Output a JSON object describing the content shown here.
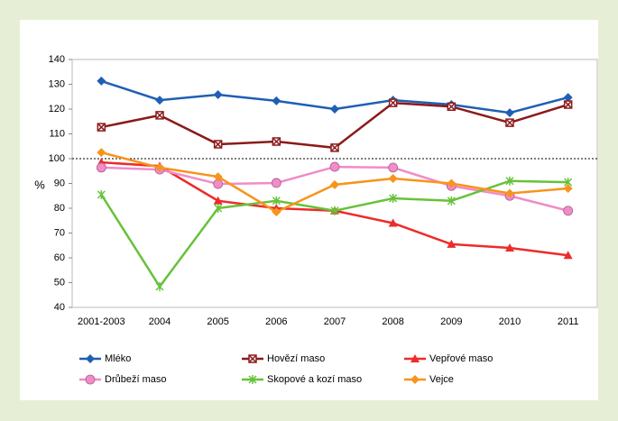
{
  "chart_data": {
    "type": "line",
    "categories": [
      "2001-2003",
      "2004",
      "2005",
      "2006",
      "2007",
      "2008",
      "2009",
      "2010",
      "2011"
    ],
    "y_label": "%",
    "ylim": [
      40,
      140
    ],
    "yticks": [
      40,
      50,
      60,
      70,
      80,
      90,
      100,
      110,
      120,
      130,
      140
    ],
    "reference_line": 100,
    "series": [
      {
        "name": "Mléko",
        "color": "#1f5fb4",
        "marker": "diamond",
        "values": [
          131.3,
          123.6,
          125.8,
          123.3,
          120,
          123.6,
          121.8,
          118.5,
          124.7
        ]
      },
      {
        "name": "Hovězí maso",
        "color": "#8b1a1a",
        "marker": "square",
        "values": [
          112.7,
          117.5,
          105.8,
          106.9,
          104.4,
          122.5,
          121,
          114.5,
          121.8
        ]
      },
      {
        "name": "Vepřové maso",
        "color": "#ee2b2b",
        "marker": "triangle",
        "values": [
          98.5,
          97,
          83,
          80,
          79,
          74,
          65.5,
          64,
          61
        ]
      },
      {
        "name": "Drůbeží maso",
        "color": "#f08cc8",
        "marker": "circle",
        "values": [
          96.4,
          95.6,
          89.8,
          90.2,
          96.7,
          96.4,
          89,
          85,
          79
        ]
      },
      {
        "name": "Skopové a kozí maso",
        "color": "#66c23a",
        "marker": "star",
        "values": [
          85.5,
          48.4,
          80,
          83,
          79,
          84,
          83,
          91,
          90.5
        ]
      },
      {
        "name": "Vejce",
        "color": "#f7941d",
        "marker": "diamond",
        "values": [
          102.5,
          96.4,
          92.7,
          78.5,
          89.5,
          92,
          90,
          86,
          88
        ]
      }
    ]
  }
}
